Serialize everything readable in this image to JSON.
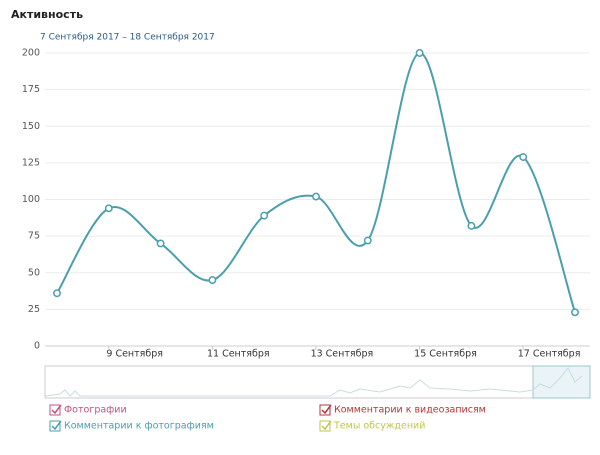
{
  "chart_data": {
    "type": "line",
    "title": "Активность",
    "subtitle": "7 Сентября 2017 – 18 Сентября 2017",
    "categories": [
      null,
      "9 Сентября",
      null,
      "11 Сентября",
      null,
      "13 Сентября",
      null,
      "15 Сентября",
      null,
      "17 Сентября",
      null
    ],
    "series": [
      {
        "name": "Комментарии к фотографиям",
        "color": "#4a9fad",
        "values": [
          36,
          94,
          70,
          45,
          89,
          102,
          72,
          200,
          82,
          129,
          23
        ]
      }
    ],
    "hidden_series": [
      {
        "name": "Фотографии",
        "color": "#c4537d"
      },
      {
        "name": "Комментарии к видеозаписям",
        "color": "#b3363a"
      },
      {
        "name": "Темы обсуждений",
        "color": "#c2c54a"
      }
    ],
    "ylim": [
      0,
      200
    ],
    "yticks": [
      0,
      25,
      50,
      75,
      100,
      125,
      150,
      175,
      200
    ],
    "grid": true
  }
}
